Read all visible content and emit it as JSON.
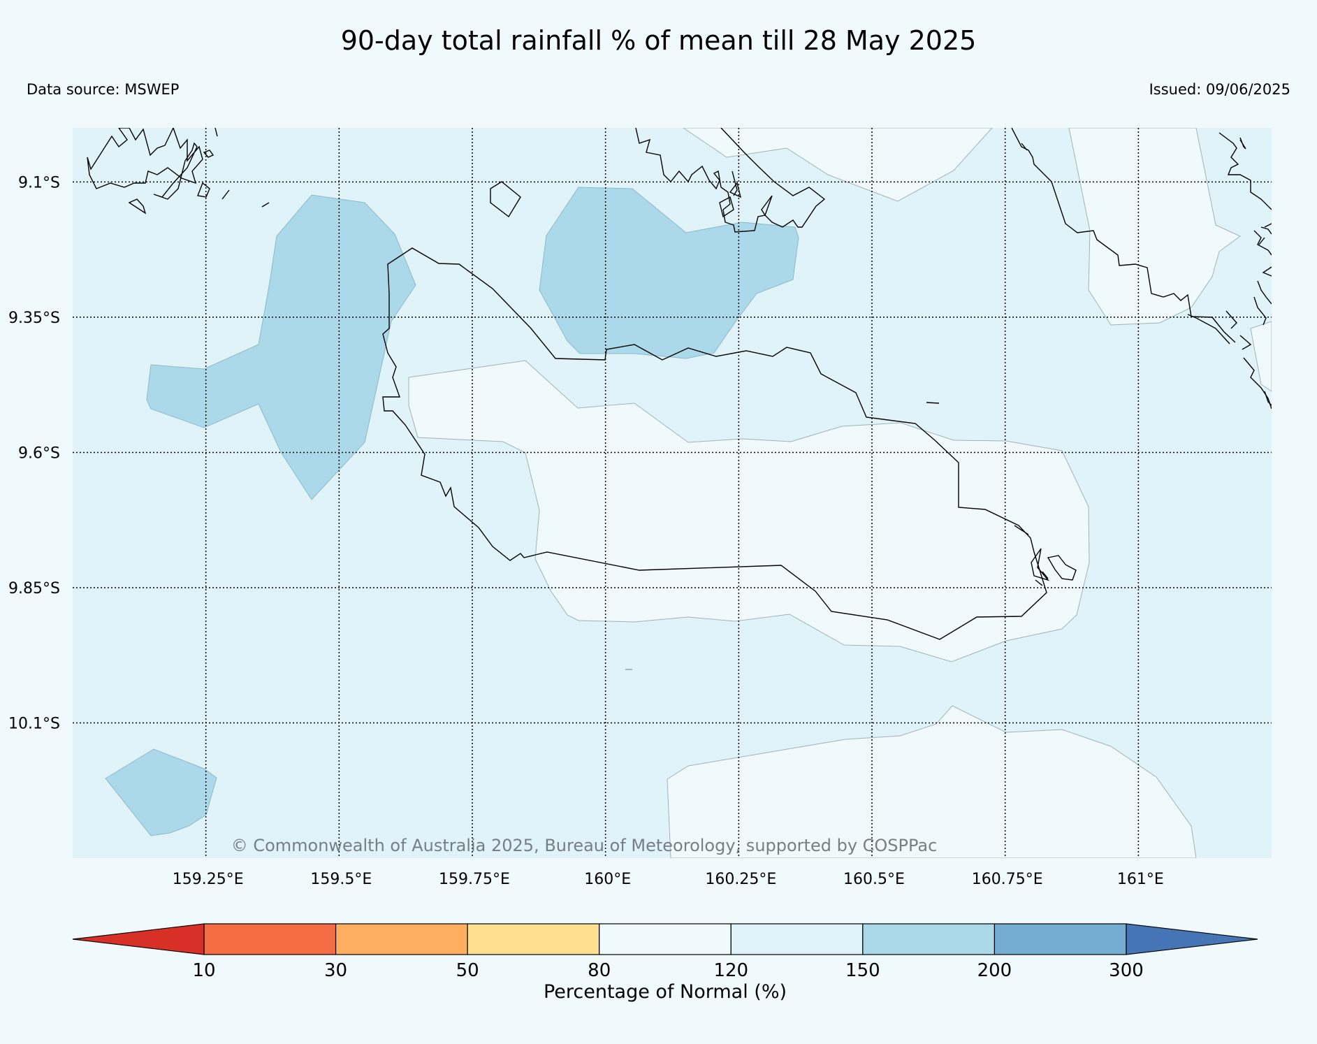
{
  "title": "90-day total rainfall % of mean till 28 May 2025",
  "data_source": "Data source: MSWEP",
  "issued": "Issued: 09/06/2025",
  "copyright": "© Commonwealth of Australia 2025, Bureau of Meteorology, supported by COSPPac",
  "map": {
    "lon_range": [
      159.0,
      161.25
    ],
    "lat_range": [
      -10.35,
      -9.0
    ],
    "lat_ticks": [
      {
        "value": -9.1,
        "label": "9.1°S"
      },
      {
        "value": -9.35,
        "label": "9.35°S"
      },
      {
        "value": -9.6,
        "label": "9.6°S"
      },
      {
        "value": -9.85,
        "label": "9.85°S"
      },
      {
        "value": -10.1,
        "label": "10.1°S"
      }
    ],
    "lon_ticks": [
      {
        "value": 159.25,
        "label": "159.25°E"
      },
      {
        "value": 159.5,
        "label": "159.5°E"
      },
      {
        "value": 159.75,
        "label": "159.75°E"
      },
      {
        "value": 160.0,
        "label": "160°E"
      },
      {
        "value": 160.25,
        "label": "160.25°E"
      },
      {
        "value": 160.5,
        "label": "160.5°E"
      },
      {
        "value": 160.75,
        "label": "160.75°E"
      },
      {
        "value": 161.0,
        "label": "161°E"
      }
    ],
    "background_class": "120-150",
    "gridlines": "dotted"
  },
  "colorbar": {
    "title": "Percentage of Normal (%)",
    "ticks": [
      "10",
      "30",
      "50",
      "80",
      "120",
      "150",
      "200",
      "300"
    ],
    "colors": {
      "under_10": "#d73027",
      "10_30": "#f46d43",
      "30_50": "#fdae61",
      "50_80": "#fee090",
      "80_120": "#f0f9fb",
      "120_150": "#e0f3f8",
      "150_200": "#abd9e9",
      "200_300": "#74add1",
      "over_300": "#4575b4"
    }
  }
}
